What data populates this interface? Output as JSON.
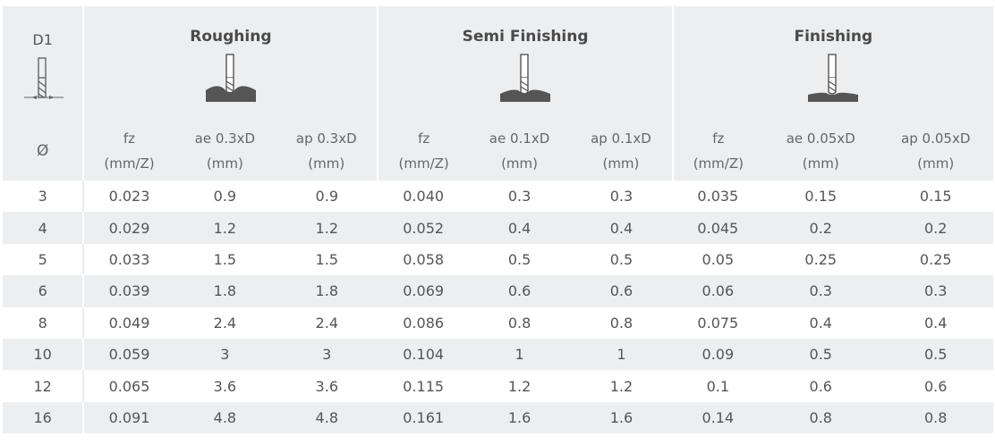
{
  "table": {
    "d1_label": "D1",
    "diameter_symbol": "Ø",
    "groups": [
      {
        "title": "Roughing",
        "cols": [
          {
            "line1": "fz",
            "line2": "(mm/Z)"
          },
          {
            "line1": "ae 0.3xD",
            "line2": "(mm)"
          },
          {
            "line1": "ap 0.3xD",
            "line2": "(mm)"
          }
        ]
      },
      {
        "title": "Semi Finishing",
        "cols": [
          {
            "line1": "fz",
            "line2": "(mm/Z)"
          },
          {
            "line1": "ae 0.1xD",
            "line2": "(mm)"
          },
          {
            "line1": "ap 0.1xD",
            "line2": "(mm)"
          }
        ]
      },
      {
        "title": "Finishing",
        "cols": [
          {
            "line1": "fz",
            "line2": "(mm/Z)"
          },
          {
            "line1": "ae 0.05xD",
            "line2": "(mm)"
          },
          {
            "line1": "ap 0.05xD",
            "line2": "(mm)"
          }
        ]
      }
    ],
    "rows": [
      [
        "3",
        "0.023",
        "0.9",
        "0.9",
        "0.040",
        "0.3",
        "0.3",
        "0.035",
        "0.15",
        "0.15"
      ],
      [
        "4",
        "0.029",
        "1.2",
        "1.2",
        "0.052",
        "0.4",
        "0.4",
        "0.045",
        "0.2",
        "0.2"
      ],
      [
        "5",
        "0.033",
        "1.5",
        "1.5",
        "0.058",
        "0.5",
        "0.5",
        "0.05",
        "0.25",
        "0.25"
      ],
      [
        "6",
        "0.039",
        "1.8",
        "1.8",
        "0.069",
        "0.6",
        "0.6",
        "0.06",
        "0.3",
        "0.3"
      ],
      [
        "8",
        "0.049",
        "2.4",
        "2.4",
        "0.086",
        "0.8",
        "0.8",
        "0.075",
        "0.4",
        "0.4"
      ],
      [
        "10",
        "0.059",
        "3",
        "3",
        "0.104",
        "1",
        "1",
        "0.09",
        "0.5",
        "0.5"
      ],
      [
        "12",
        "0.065",
        "3.6",
        "3.6",
        "0.115",
        "1.2",
        "1.2",
        "0.1",
        "0.6",
        "0.6"
      ],
      [
        "16",
        "0.091",
        "4.8",
        "4.8",
        "0.161",
        "1.6",
        "1.6",
        "0.14",
        "0.8",
        "0.8"
      ]
    ],
    "icons": {
      "d1": "end-mill-diameter-icon",
      "roughing": "roughing-cut-icon",
      "semi": "semi-finishing-cut-icon",
      "finishing": "finishing-cut-icon"
    }
  }
}
